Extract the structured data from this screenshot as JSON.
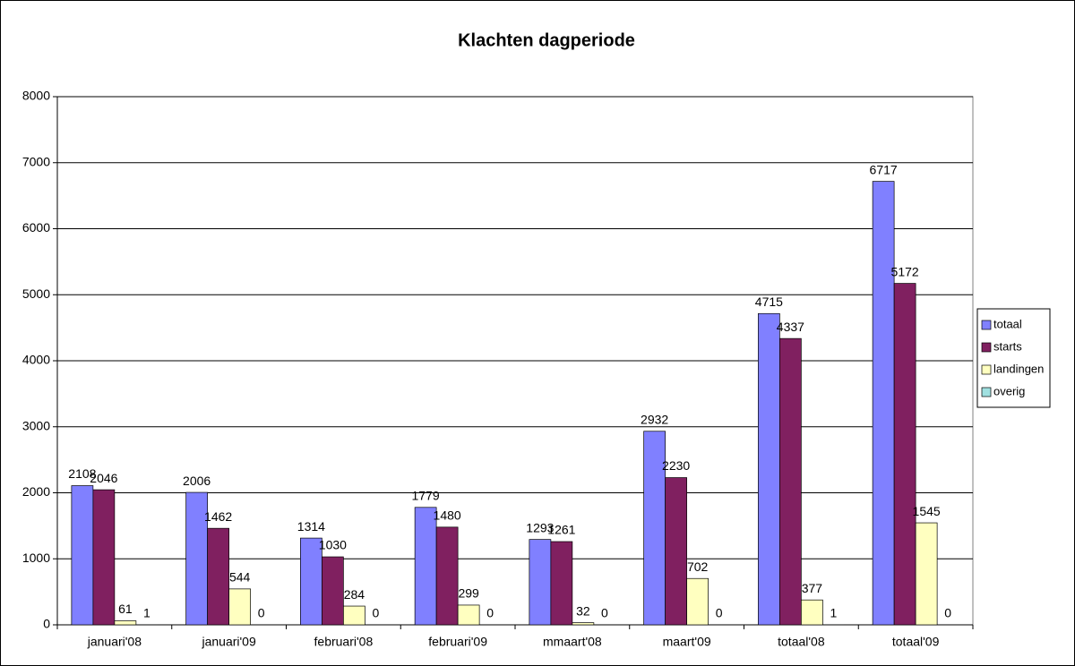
{
  "chart_data": {
    "type": "bar",
    "title": "Klachten dagperiode",
    "categories": [
      "januari'08",
      "januari'09",
      "februari'08",
      "februari'09",
      "mmaart'08",
      "maart'09",
      "totaal'08",
      "totaal'09"
    ],
    "series": [
      {
        "name": "totaal",
        "color": "#8080ff",
        "values": [
          2108,
          2006,
          1314,
          1779,
          1293,
          2932,
          4715,
          6717
        ]
      },
      {
        "name": "starts",
        "color": "#802060",
        "values": [
          2046,
          1462,
          1030,
          1480,
          1261,
          2230,
          4337,
          5172
        ]
      },
      {
        "name": "landingen",
        "color": "#ffffc0",
        "values": [
          61,
          544,
          284,
          299,
          32,
          702,
          377,
          1545
        ]
      },
      {
        "name": "overig",
        "color": "#a0e0e0",
        "values": [
          1,
          0,
          0,
          0,
          0,
          0,
          1,
          0
        ]
      }
    ],
    "ylim": [
      0,
      8000
    ],
    "yticks": [
      0,
      1000,
      2000,
      3000,
      4000,
      5000,
      6000,
      7000,
      8000
    ],
    "grid": true,
    "legend": "right"
  }
}
